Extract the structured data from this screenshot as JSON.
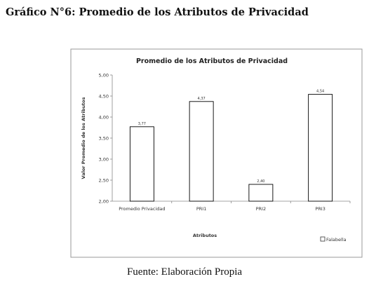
{
  "caption": "Gráfico N°6: Promedio de los Atributos de Privacidad",
  "source": "Fuente: Elaboración Propia",
  "chart_data": {
    "type": "bar",
    "title": "Promedio de los Atributos de Privacidad",
    "xlabel": "Atributos",
    "ylabel": "Valor Promedio de los Atributos",
    "categories": [
      "Promedio Privacidad",
      "PRI1",
      "PRI2",
      "PRI3"
    ],
    "series": [
      {
        "name": "Falabella",
        "values": [
          3.77,
          4.37,
          2.4,
          4.54
        ],
        "labels": [
          "3,77",
          "4,37",
          "2,40",
          "4,54"
        ]
      }
    ],
    "ylim": [
      2.0,
      5.0
    ],
    "yticks": [
      "2,00",
      "2,50",
      "3,00",
      "3,50",
      "4,00",
      "4,50",
      "5,00"
    ],
    "ytick_values": [
      2.0,
      2.5,
      3.0,
      3.5,
      4.0,
      4.5,
      5.0
    ],
    "grid": false,
    "legend_position": "bottom-right",
    "bar_fill": "#ffffff",
    "bar_stroke": "#000000",
    "frame_color": "#999999"
  }
}
